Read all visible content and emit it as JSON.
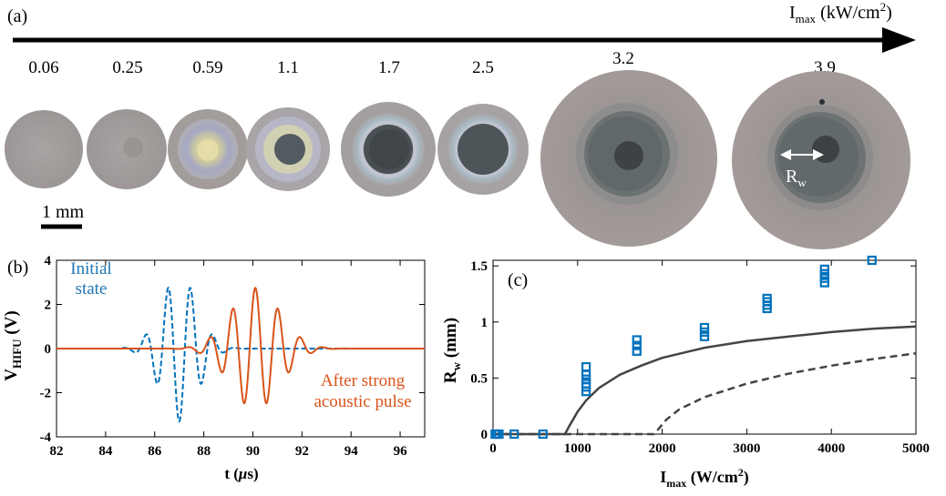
{
  "panel_a": {
    "label": "(a)",
    "axis_label_main": "I",
    "axis_label_sub": "max",
    "axis_label_unit": " (kW/cm",
    "axis_label_sup": "2",
    "axis_label_close": ")",
    "samples": [
      {
        "intensity": "0.06"
      },
      {
        "intensity": "0.25"
      },
      {
        "intensity": "0.59"
      },
      {
        "intensity": "1.1"
      },
      {
        "intensity": "1.7"
      },
      {
        "intensity": "2.5"
      },
      {
        "intensity": "3.2"
      },
      {
        "intensity": "3.9"
      }
    ],
    "scale_bar_label": "1 mm",
    "radius_label_main": "R",
    "radius_label_sub": "w"
  },
  "chart_data": [
    {
      "panel": "(b)",
      "type": "line",
      "xlabel_main": "t (",
      "xlabel_mu": "μ",
      "xlabel_end": "s)",
      "ylabel_main": "V",
      "ylabel_sub": "HIFU",
      "ylabel_unit": " (V)",
      "xlim": [
        82,
        97
      ],
      "ylim": [
        -4,
        4
      ],
      "xticks": [
        "82",
        "84",
        "86",
        "88",
        "90",
        "92",
        "94",
        "96"
      ],
      "yticks": [
        "-4",
        "-2",
        "0",
        "2",
        "4"
      ],
      "annotations": [
        {
          "lines": [
            "Initial",
            "state"
          ],
          "color": "#1f77b4"
        },
        {
          "lines": [
            "After strong",
            "acoustic pulse"
          ],
          "color": "#d95319"
        }
      ],
      "series": [
        {
          "style": "dashed",
          "color": "#0072bd",
          "signal": {
            "t0": 87.0,
            "sigma": 0.75,
            "period": 0.92,
            "amp": 3.3,
            "sign": -1
          }
        },
        {
          "style": "solid",
          "color": "#d95319",
          "signal": {
            "t0": 90.1,
            "sigma": 1.0,
            "period": 0.92,
            "amp": 2.75,
            "sign": 1
          }
        }
      ]
    },
    {
      "panel": "(c)",
      "type": "scatter",
      "xlabel_main": "I",
      "xlabel_sub": "max",
      "xlabel_unit": " (W/cm",
      "xlabel_sup": "2",
      "xlabel_close": ")",
      "ylabel_main": "R",
      "ylabel_sub": "w",
      "ylabel_unit": " (mm)",
      "xlim": [
        0,
        5000
      ],
      "ylim": [
        0,
        1.55
      ],
      "xticks": [
        "0",
        "1000",
        "2000",
        "3000",
        "4000",
        "5000"
      ],
      "yticks": [
        "0",
        "0.5",
        "1",
        "1.5"
      ],
      "points": [
        {
          "x": 25,
          "y": 0
        },
        {
          "x": 45,
          "y": 0
        },
        {
          "x": 70,
          "y": 0
        },
        {
          "x": 250,
          "y": 0
        },
        {
          "x": 590,
          "y": 0
        },
        {
          "x": 1100,
          "y": 0.38
        },
        {
          "x": 1100,
          "y": 0.42
        },
        {
          "x": 1100,
          "y": 0.45
        },
        {
          "x": 1100,
          "y": 0.49
        },
        {
          "x": 1100,
          "y": 0.53
        },
        {
          "x": 1100,
          "y": 0.6
        },
        {
          "x": 1700,
          "y": 0.74
        },
        {
          "x": 1700,
          "y": 0.79
        },
        {
          "x": 1700,
          "y": 0.84
        },
        {
          "x": 2500,
          "y": 0.87
        },
        {
          "x": 2500,
          "y": 0.91
        },
        {
          "x": 2500,
          "y": 0.95
        },
        {
          "x": 3240,
          "y": 1.12
        },
        {
          "x": 3240,
          "y": 1.15
        },
        {
          "x": 3240,
          "y": 1.18
        },
        {
          "x": 3240,
          "y": 1.21
        },
        {
          "x": 3920,
          "y": 1.35
        },
        {
          "x": 3920,
          "y": 1.39
        },
        {
          "x": 3920,
          "y": 1.43
        },
        {
          "x": 3920,
          "y": 1.47
        },
        {
          "x": 4480,
          "y": 1.55
        }
      ],
      "point_color": "#0072bd",
      "curves": [
        {
          "style": "solid",
          "color": "#444444",
          "x": [
            0,
            850,
            900,
            1000,
            1100,
            1250,
            1500,
            1750,
            2000,
            2500,
            3000,
            3500,
            4000,
            4500,
            5000
          ],
          "y": [
            0,
            0,
            0.07,
            0.2,
            0.3,
            0.41,
            0.53,
            0.61,
            0.68,
            0.77,
            0.83,
            0.87,
            0.91,
            0.94,
            0.96
          ]
        },
        {
          "style": "dashed",
          "color": "#444444",
          "x": [
            0,
            1900,
            1950,
            2050,
            2200,
            2500,
            3000,
            3500,
            4000,
            4500,
            5000
          ],
          "y": [
            0,
            0,
            0.04,
            0.13,
            0.22,
            0.33,
            0.45,
            0.54,
            0.61,
            0.67,
            0.72
          ]
        }
      ]
    }
  ]
}
